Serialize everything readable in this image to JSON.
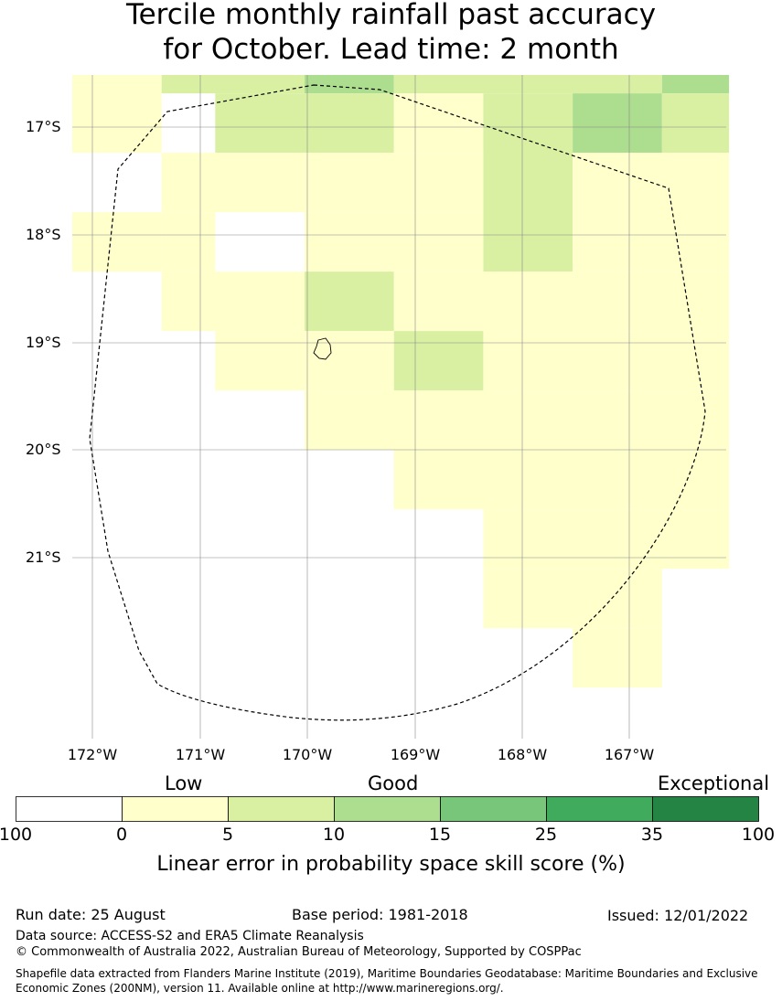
{
  "title_line1": "Tercile monthly rainfall past accuracy",
  "title_line2": "for October. Lead time: 2 month",
  "map": {
    "lon_range": [
      -172.2,
      -166.1
    ],
    "lat_range": [
      -22.5,
      -16.5
    ],
    "y_ticks": [
      "17°S",
      "18°S",
      "19°S",
      "20°S",
      "21°S"
    ],
    "x_ticks": [
      "172°W",
      "171°W",
      "170°W",
      "169°W",
      "168°W",
      "167°W"
    ],
    "cell_colors": {
      "low": "#ffffcc",
      "good": "#d9f0a3",
      "good2": "#addd8e"
    },
    "boundary_style": "dashed",
    "gridlines": true
  },
  "legend": {
    "categories": [
      "Low",
      "Good",
      "Exceptional"
    ],
    "ticks": [
      "100",
      "0",
      "5",
      "10",
      "15",
      "25",
      "35",
      "100"
    ],
    "colors": [
      "#ffffff",
      "#ffffcc",
      "#d9f0a3",
      "#addd8e",
      "#78c679",
      "#41ab5d",
      "#238443"
    ],
    "label": "Linear error in probability space skill score (%)"
  },
  "footer": {
    "run_date": "Run date: 25 August",
    "base_period": "Base period: 1981-2018",
    "issued": "Issued: 12/01/2022",
    "data_source": "Data source: ACCESS-S2 and ERA5 Climate Reanalysis",
    "copyright": "© Commonwealth of Australia 2022, Australian Bureau of Meteorology, Supported by COSPPac",
    "shapefile_line1": "Shapefile data extracted from Flanders Marine Institute (2019), Maritime Boundaries Geodatabase: Maritime Boundaries and Exclusive",
    "shapefile_line2": "Economic Zones (200NM), version 11. Available online at http://www.marineregions.org/."
  }
}
